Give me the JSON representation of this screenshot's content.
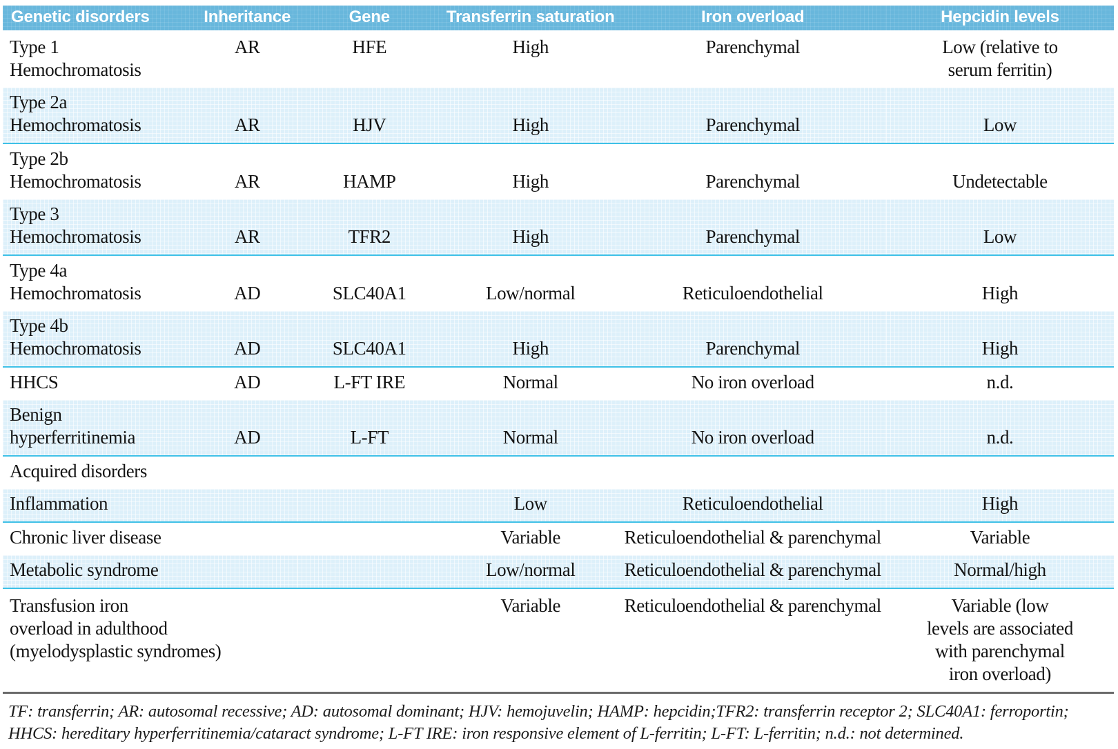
{
  "table": {
    "columns": [
      {
        "label": "Genetic disorders"
      },
      {
        "label": "Inheritance"
      },
      {
        "label": "Gene"
      },
      {
        "label": "Transferrin saturation"
      },
      {
        "label": "Iron overload"
      },
      {
        "label": "Hepcidin levels"
      }
    ],
    "rows": [
      {
        "disorder": "Type 1\nHemochromatosis",
        "inheritance": "AR",
        "gene": "HFE",
        "transferrin_saturation": "High",
        "iron_overload": "Parenchymal",
        "hepcidin_levels": "Low (relative to\nserum ferritin)"
      },
      {
        "disorder": "Type 2a\nHemochromatosis",
        "inheritance": "AR",
        "gene": "HJV",
        "transferrin_saturation": "High",
        "iron_overload": "Parenchymal",
        "hepcidin_levels": "Low"
      },
      {
        "disorder": "Type 2b\nHemochromatosis",
        "inheritance": "AR",
        "gene": "HAMP",
        "transferrin_saturation": "High",
        "iron_overload": "Parenchymal",
        "hepcidin_levels": "Undetectable"
      },
      {
        "disorder": "Type 3\nHemochromatosis",
        "inheritance": "AR",
        "gene": "TFR2",
        "transferrin_saturation": "High",
        "iron_overload": "Parenchymal",
        "hepcidin_levels": "Low"
      },
      {
        "disorder": "Type 4a\nHemochromatosis",
        "inheritance": "AD",
        "gene": "SLC40A1",
        "transferrin_saturation": "Low/normal",
        "iron_overload": "Reticuloendothelial",
        "hepcidin_levels": "High"
      },
      {
        "disorder": "Type 4b\nHemochromatosis",
        "inheritance": "AD",
        "gene": "SLC40A1",
        "transferrin_saturation": "High",
        "iron_overload": "Parenchymal",
        "hepcidin_levels": "High"
      },
      {
        "disorder": "HHCS",
        "inheritance": "AD",
        "gene": "L-FT IRE",
        "transferrin_saturation": "Normal",
        "iron_overload": "No iron overload",
        "hepcidin_levels": "n.d."
      },
      {
        "disorder": "Benign\nhyperferritinemia",
        "inheritance": "AD",
        "gene": "L-FT",
        "transferrin_saturation": "Normal",
        "iron_overload": "No iron overload",
        "hepcidin_levels": "n.d."
      },
      {
        "disorder": "Acquired disorders",
        "inheritance": "",
        "gene": "",
        "transferrin_saturation": "",
        "iron_overload": "",
        "hepcidin_levels": ""
      },
      {
        "disorder": "Inflammation",
        "inheritance": "",
        "gene": "",
        "transferrin_saturation": "Low",
        "iron_overload": "Reticuloendothelial",
        "hepcidin_levels": "High"
      },
      {
        "disorder": "Chronic liver disease",
        "inheritance": "",
        "gene": "",
        "transferrin_saturation": "Variable",
        "iron_overload": "Reticuloendothelial & parenchymal",
        "hepcidin_levels": "Variable"
      },
      {
        "disorder": "Metabolic syndrome",
        "inheritance": "",
        "gene": "",
        "transferrin_saturation": "Low/normal",
        "iron_overload": "Reticuloendothelial & parenchymal",
        "hepcidin_levels": "Normal/high"
      },
      {
        "disorder": "Transfusion iron\noverload in adulthood\n(myelodysplastic syndromes)",
        "inheritance": "",
        "gene": "",
        "transferrin_saturation": "Variable",
        "iron_overload": "Reticuloendothelial & parenchymal",
        "hepcidin_levels": "Variable (low\nlevels are associated\nwith parenchymal\niron overload)"
      }
    ]
  },
  "footnote": "TF: transferrin; AR: autosomal recessive; AD: autosomal dominant; HJV: hemojuvelin; HAMP: hepcidin;TFR2: transferrin receptor 2; SLC40A1: ferroportin; HHCS: hereditary hyperferritinemia/cataract syndrome; L-FT IRE: iron responsive element of L-ferritin; L-FT: L-ferritin; n.d.: not determined.",
  "colors": {
    "header_bg": "#68b7dc",
    "row_shade": "#ddf0fa",
    "row_divider": "#3fc1e7",
    "table_bottom_border": "#6b6b6b"
  }
}
